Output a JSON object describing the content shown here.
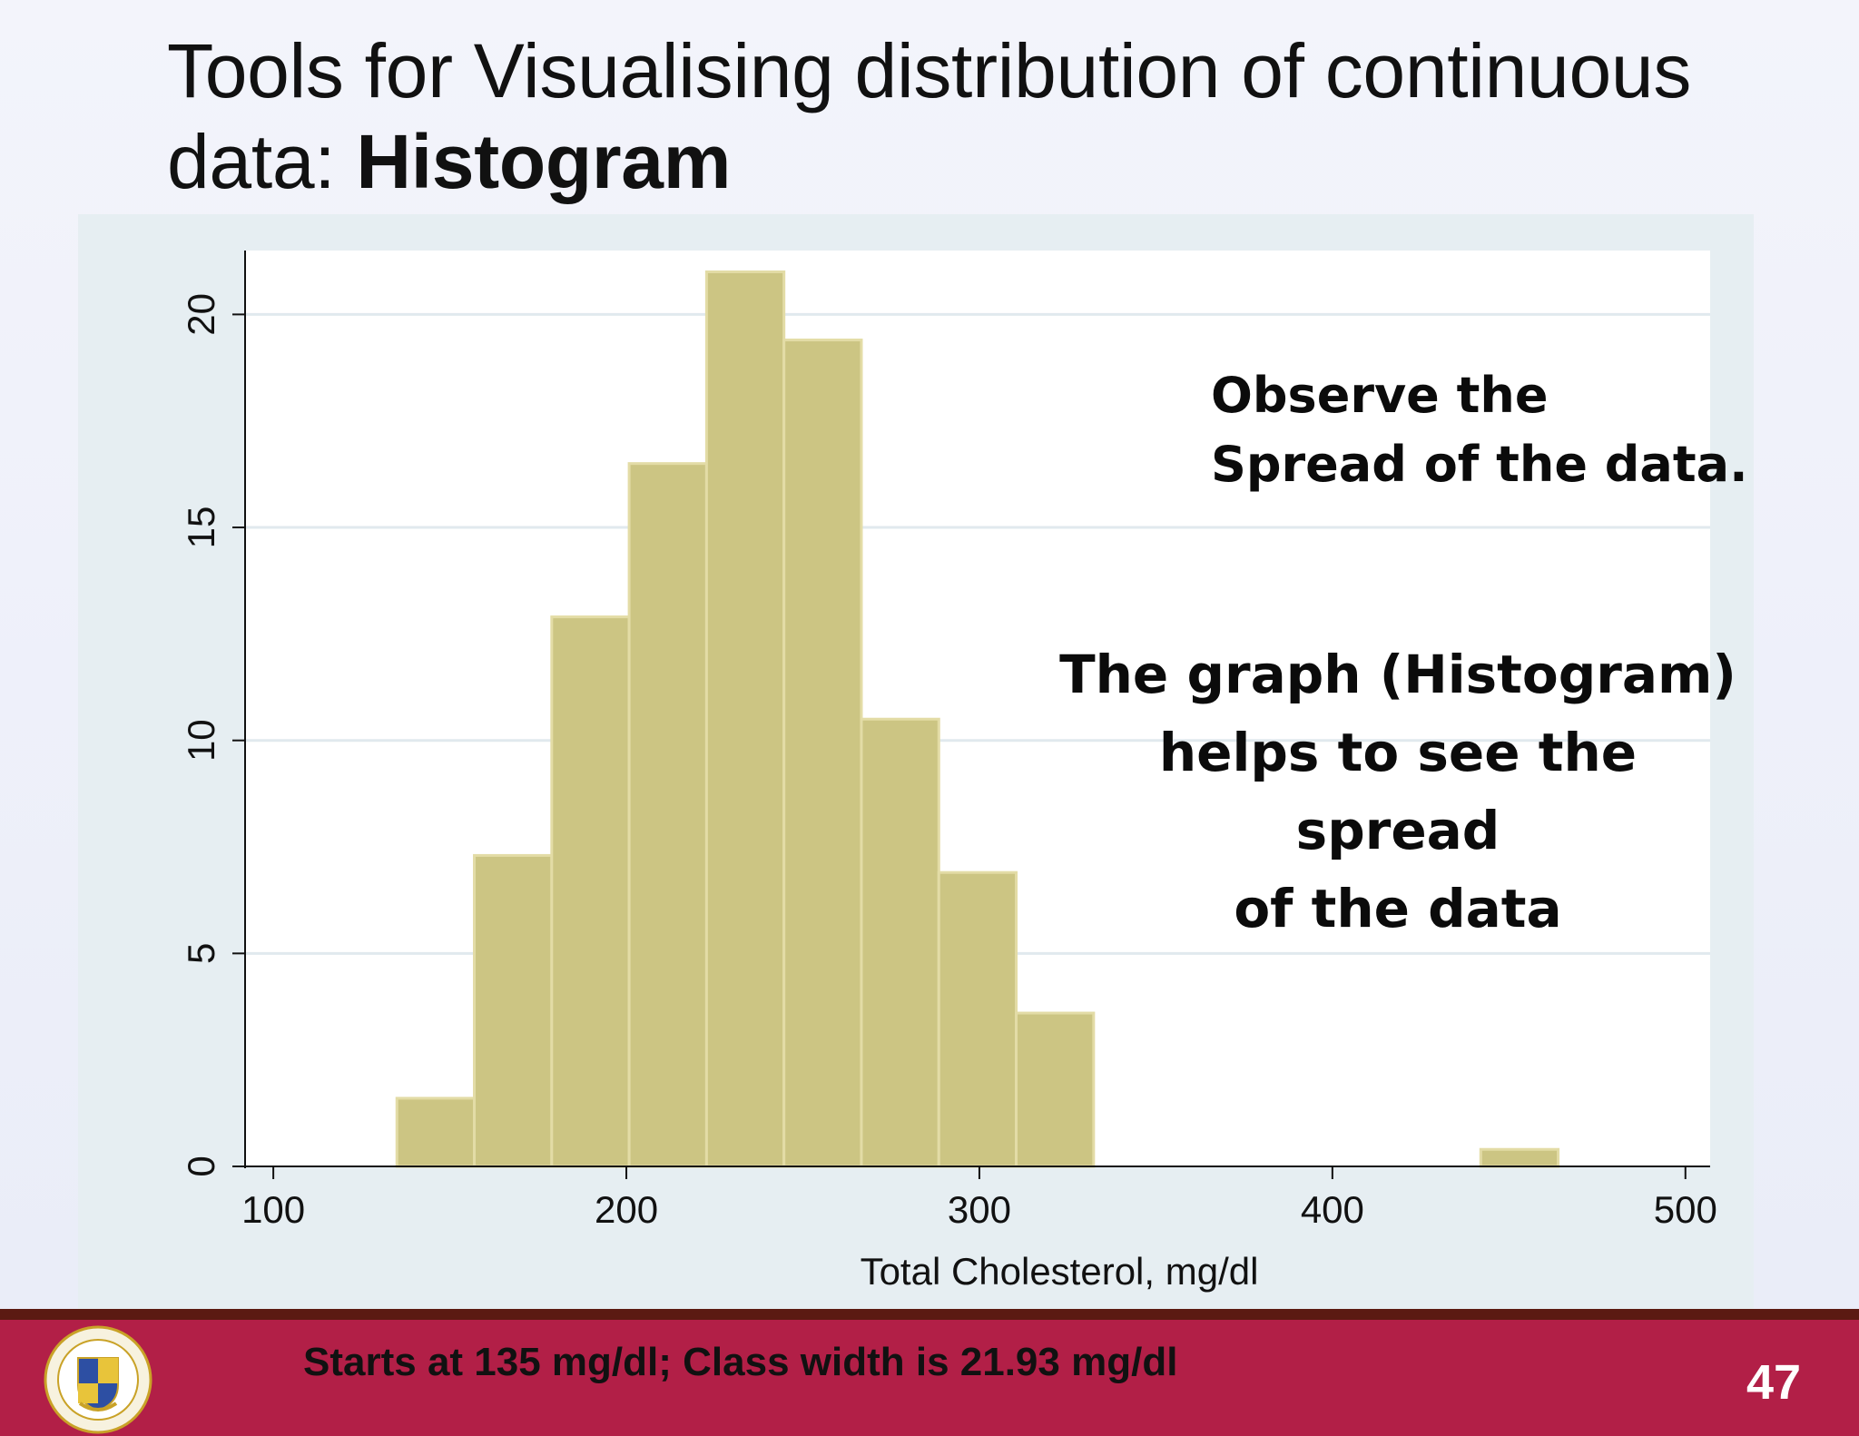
{
  "slide": {
    "title_line1": "Tools for Visualising distribution of continuous",
    "title_line2_prefix": "data:  ",
    "title_line2_bold": "Histogram"
  },
  "annotations": {
    "observe_line1": "Observe the",
    "observe_line2": "Spread of the data.",
    "graph_line1": "The graph (Histogram)",
    "graph_line2": "helps to see the spread",
    "graph_line3": "of the data"
  },
  "footer": {
    "text": "Starts at 135 mg/dl; Class width is 21.93 mg/dl",
    "page_number": "47",
    "logo_icon": "university-seal-icon"
  },
  "colors": {
    "bar_fill": "#ccc583",
    "bar_edge": "#e3dca6",
    "footer_bg": "#b21f47",
    "footer_border": "#5b1a12",
    "chart_bg": "#e6eef2",
    "plot_bg": "#ffffff",
    "grid": "#e1e9ee"
  },
  "chart_data": {
    "type": "bar",
    "title": "",
    "xlabel": "Total Cholesterol, mg/dl",
    "ylabel": "",
    "bin_start": 135,
    "bin_width": 21.93,
    "values": [
      1.6,
      7.3,
      12.9,
      16.5,
      21.0,
      19.4,
      10.5,
      6.9,
      3.6,
      0,
      0,
      0,
      0,
      0,
      0.4
    ],
    "xlim": [
      92,
      507
    ],
    "ylim": [
      0,
      21.5
    ],
    "xticks": [
      "100",
      "200",
      "300",
      "400",
      "500"
    ],
    "yticks": [
      "0",
      "5",
      "10",
      "15",
      "20"
    ],
    "grid": true
  }
}
